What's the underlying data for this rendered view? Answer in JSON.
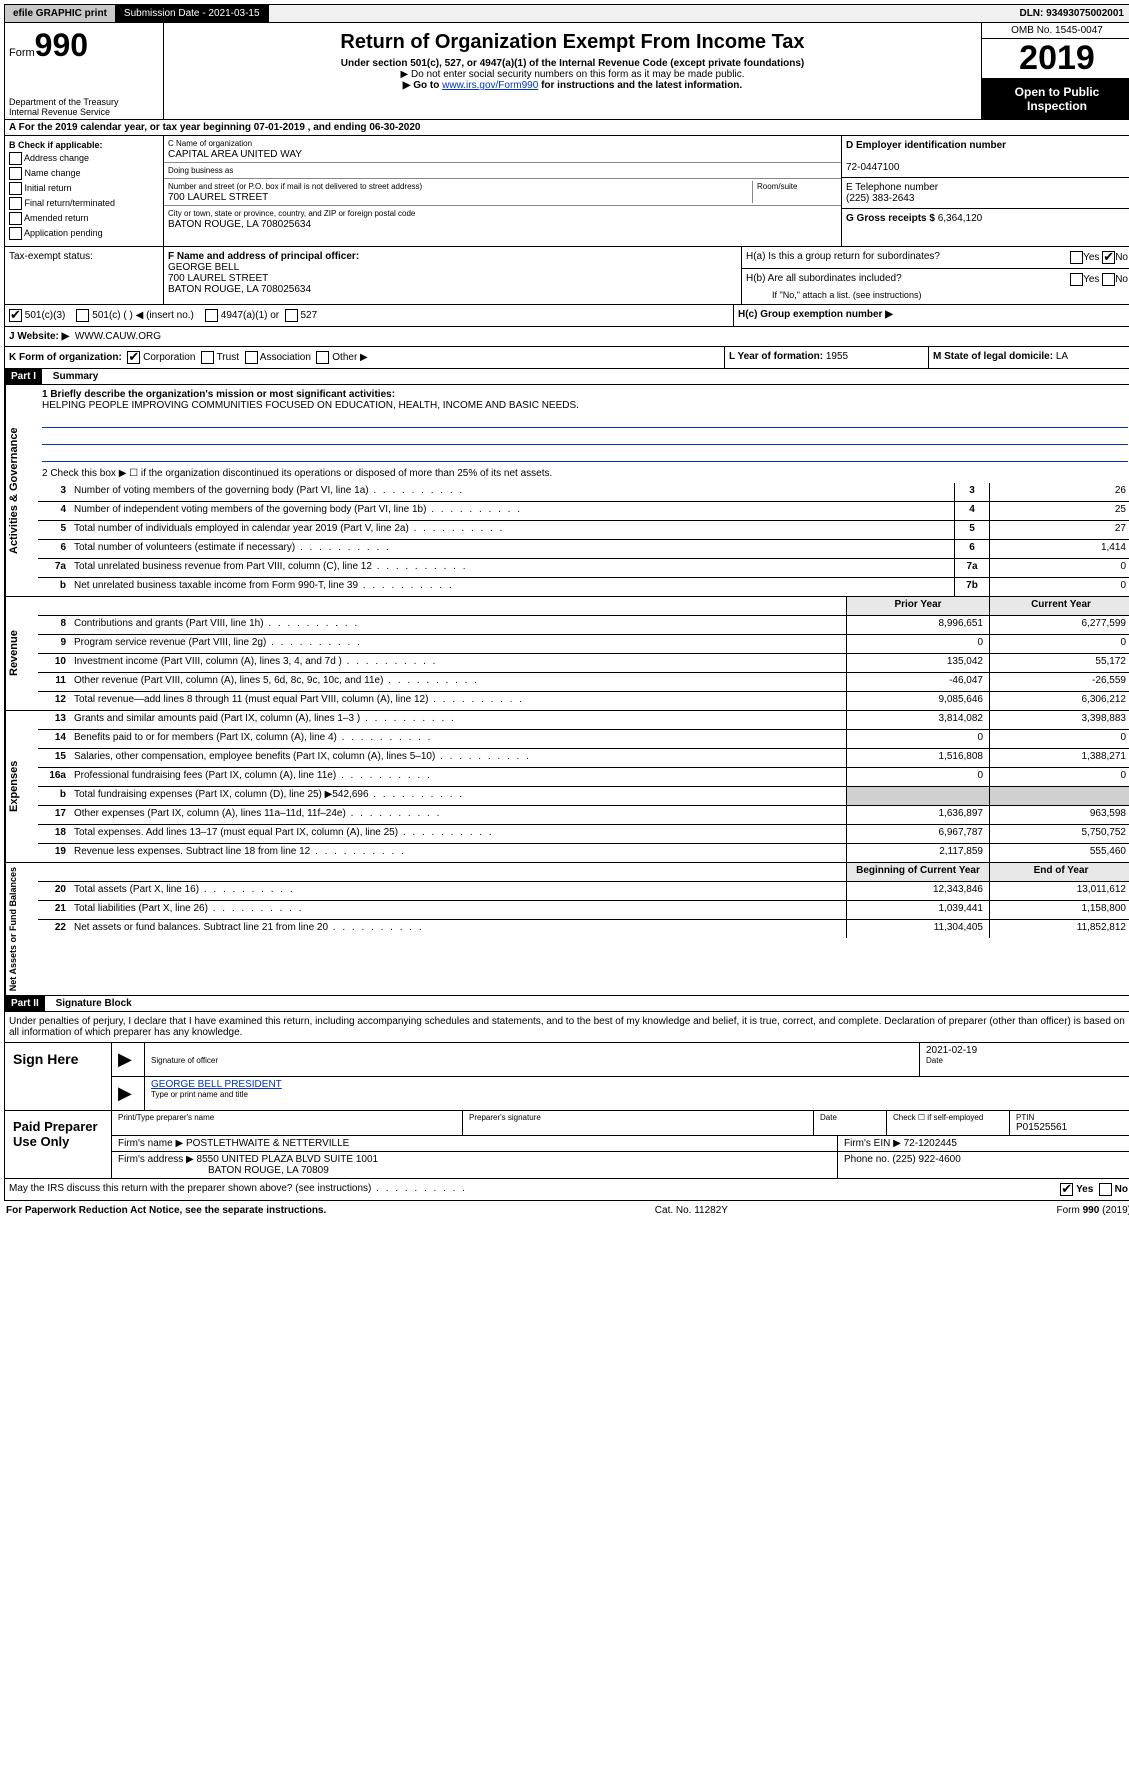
{
  "topbar": {
    "efile": "efile GRAPHIC print",
    "submission_label": "Submission Date - 2021-03-15",
    "dln": "DLN: 93493075002001"
  },
  "header": {
    "form_prefix": "Form",
    "form_number": "990",
    "dept1": "Department of the Treasury",
    "dept2": "Internal Revenue Service",
    "title": "Return of Organization Exempt From Income Tax",
    "subtitle": "Under section 501(c), 527, or 4947(a)(1) of the Internal Revenue Code (except private foundations)",
    "note1": "▶ Do not enter social security numbers on this form as it may be made public.",
    "note2_pre": "▶ Go to ",
    "note2_link": "www.irs.gov/Form990",
    "note2_post": " for instructions and the latest information.",
    "omb": "OMB No. 1545-0047",
    "year": "2019",
    "open": "Open to Public Inspection"
  },
  "section_a": "A For the 2019 calendar year, or tax year beginning 07-01-2019    , and ending 06-30-2020",
  "box_b": {
    "title": "B Check if applicable:",
    "opts": [
      "Address change",
      "Name change",
      "Initial return",
      "Final return/terminated",
      "Amended return",
      "Application pending"
    ]
  },
  "box_c": {
    "name_label": "C Name of organization",
    "name": "CAPITAL AREA UNITED WAY",
    "dba_label": "Doing business as",
    "dba": "",
    "street_label": "Number and street (or P.O. box if mail is not delivered to street address)",
    "room_label": "Room/suite",
    "street": "700 LAUREL STREET",
    "city_label": "City or town, state or province, country, and ZIP or foreign postal code",
    "city": "BATON ROUGE, LA  708025634"
  },
  "box_d": {
    "label": "D Employer identification number",
    "value": "72-0447100"
  },
  "box_e": {
    "label": "E Telephone number",
    "value": "(225) 383-2643"
  },
  "box_g": {
    "label": "G Gross receipts $",
    "value": "6,364,120"
  },
  "box_f": {
    "label": "F  Name and address of principal officer:",
    "name": "GEORGE BELL",
    "street": "700 LAUREL STREET",
    "city": "BATON ROUGE, LA  708025634"
  },
  "box_h": {
    "a": "H(a)  Is this a group return for subordinates?",
    "b": "H(b)  Are all subordinates included?",
    "b_note": "If \"No,\" attach a list. (see instructions)",
    "c": "H(c)  Group exemption number ▶"
  },
  "tax_exempt": {
    "label": "Tax-exempt status:",
    "c3": "501(c)(3)",
    "c": "501(c) (  ) ◀ (insert no.)",
    "a1": "4947(a)(1) or",
    "527": "527"
  },
  "website": {
    "label": "J   Website: ▶",
    "value": "WWW.CAUW.ORG"
  },
  "box_k": {
    "label": "K Form of organization:",
    "corp": "Corporation",
    "trust": "Trust",
    "assoc": "Association",
    "other": "Other ▶"
  },
  "box_l": {
    "label": "L Year of formation:",
    "value": "1955"
  },
  "box_m": {
    "label": "M State of legal domicile:",
    "value": "LA"
  },
  "part1": {
    "header": "Part I",
    "title": "Summary",
    "line1_label": "1   Briefly describe the organization's mission or most significant activities:",
    "mission": "HELPING PEOPLE IMPROVING COMMUNITIES FOCUSED ON EDUCATION, HEALTH, INCOME AND BASIC NEEDS.",
    "line2": "2    Check this box ▶ ☐ if the organization discontinued its operations or disposed of more than 25% of its net assets.",
    "governance_label": "Activities & Governance",
    "revenue_label": "Revenue",
    "expenses_label": "Expenses",
    "netassets_label": "Net Assets or Fund Balances",
    "prior_year": "Prior Year",
    "current_year": "Current Year",
    "begin_year": "Beginning of Current Year",
    "end_year": "End of Year",
    "lines_single": [
      {
        "n": "3",
        "d": "Number of voting members of the governing body (Part VI, line 1a)",
        "box": "3",
        "v": "26"
      },
      {
        "n": "4",
        "d": "Number of independent voting members of the governing body (Part VI, line 1b)",
        "box": "4",
        "v": "25"
      },
      {
        "n": "5",
        "d": "Total number of individuals employed in calendar year 2019 (Part V, line 2a)",
        "box": "5",
        "v": "27"
      },
      {
        "n": "6",
        "d": "Total number of volunteers (estimate if necessary)",
        "box": "6",
        "v": "1,414"
      },
      {
        "n": "7a",
        "d": "Total unrelated business revenue from Part VIII, column (C), line 12",
        "box": "7a",
        "v": "0"
      },
      {
        "n": "b",
        "d": "Net unrelated business taxable income from Form 990-T, line 39",
        "box": "7b",
        "v": "0"
      }
    ],
    "lines_rev": [
      {
        "n": "8",
        "d": "Contributions and grants (Part VIII, line 1h)",
        "p": "8,996,651",
        "c": "6,277,599"
      },
      {
        "n": "9",
        "d": "Program service revenue (Part VIII, line 2g)",
        "p": "0",
        "c": "0"
      },
      {
        "n": "10",
        "d": "Investment income (Part VIII, column (A), lines 3, 4, and 7d )",
        "p": "135,042",
        "c": "55,172"
      },
      {
        "n": "11",
        "d": "Other revenue (Part VIII, column (A), lines 5, 6d, 8c, 9c, 10c, and 11e)",
        "p": "-46,047",
        "c": "-26,559"
      },
      {
        "n": "12",
        "d": "Total revenue—add lines 8 through 11 (must equal Part VIII, column (A), line 12)",
        "p": "9,085,646",
        "c": "6,306,212"
      }
    ],
    "lines_exp": [
      {
        "n": "13",
        "d": "Grants and similar amounts paid (Part IX, column (A), lines 1–3 )",
        "p": "3,814,082",
        "c": "3,398,883"
      },
      {
        "n": "14",
        "d": "Benefits paid to or for members (Part IX, column (A), line 4)",
        "p": "0",
        "c": "0"
      },
      {
        "n": "15",
        "d": "Salaries, other compensation, employee benefits (Part IX, column (A), lines 5–10)",
        "p": "1,516,808",
        "c": "1,388,271"
      },
      {
        "n": "16a",
        "d": "Professional fundraising fees (Part IX, column (A), line 11e)",
        "p": "0",
        "c": "0"
      },
      {
        "n": "b",
        "d": "Total fundraising expenses (Part IX, column (D), line 25) ▶542,696",
        "p": "",
        "c": "",
        "gray": true
      },
      {
        "n": "17",
        "d": "Other expenses (Part IX, column (A), lines 11a–11d, 11f–24e)",
        "p": "1,636,897",
        "c": "963,598"
      },
      {
        "n": "18",
        "d": "Total expenses. Add lines 13–17 (must equal Part IX, column (A), line 25)",
        "p": "6,967,787",
        "c": "5,750,752"
      },
      {
        "n": "19",
        "d": "Revenue less expenses. Subtract line 18 from line 12",
        "p": "2,117,859",
        "c": "555,460"
      }
    ],
    "lines_net": [
      {
        "n": "20",
        "d": "Total assets (Part X, line 16)",
        "p": "12,343,846",
        "c": "13,011,612"
      },
      {
        "n": "21",
        "d": "Total liabilities (Part X, line 26)",
        "p": "1,039,441",
        "c": "1,158,800"
      },
      {
        "n": "22",
        "d": "Net assets or fund balances. Subtract line 21 from line 20",
        "p": "11,304,405",
        "c": "11,852,812"
      }
    ]
  },
  "part2": {
    "header": "Part II",
    "title": "Signature Block",
    "perjury": "Under penalties of perjury, I declare that I have examined this return, including accompanying schedules and statements, and to the best of my knowledge and belief, it is true, correct, and complete. Declaration of preparer (other than officer) is based on all information of which preparer has any knowledge."
  },
  "sign": {
    "left": "Sign Here",
    "sig_officer": "Signature of officer",
    "date": "2021-02-19",
    "date_label": "Date",
    "name": "GEORGE BELL PRESIDENT",
    "name_label": "Type or print name and title"
  },
  "paid": {
    "left": "Paid Preparer Use Only",
    "h1": "Print/Type preparer's name",
    "h2": "Preparer's signature",
    "h3": "Date",
    "h4_a": "Check ☐ if self-employed",
    "h4_b": "PTIN",
    "ptin": "P01525561",
    "firm_name_label": "Firm's name    ▶",
    "firm_name": "POSTLETHWAITE & NETTERVILLE",
    "firm_ein_label": "Firm's EIN ▶",
    "firm_ein": "72-1202445",
    "firm_addr_label": "Firm's address ▶",
    "firm_addr1": "8550 UNITED PLAZA BLVD SUITE 1001",
    "firm_addr2": "BATON ROUGE, LA  70809",
    "phone_label": "Phone no.",
    "phone": "(225) 922-4600"
  },
  "discuss": {
    "q": "May the IRS discuss this return with the preparer shown above? (see instructions)",
    "yes": "Yes",
    "no": "No"
  },
  "footer": {
    "left": "For Paperwork Reduction Act Notice, see the separate instructions.",
    "mid": "Cat. No. 11282Y",
    "right_pre": "Form ",
    "right_b": "990",
    "right_post": " (2019)"
  }
}
